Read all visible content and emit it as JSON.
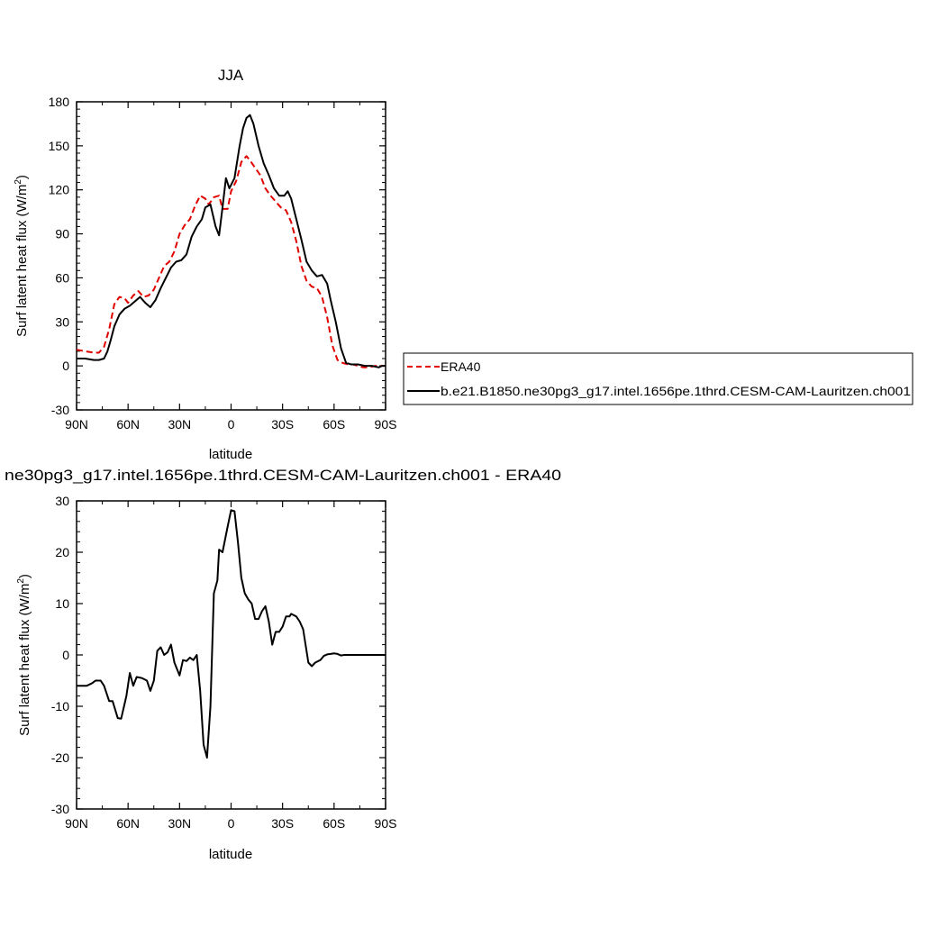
{
  "chart_data": [
    {
      "type": "line",
      "title": "JJA",
      "xlabel": "latitude",
      "ylabel": "Surf latent heat flux (W/m²)",
      "ylabel_main": "Surf latent heat flux (W/m",
      "ylabel_sup": "2",
      "ylabel_end": ")",
      "xlim": [
        90,
        -90
      ],
      "ylim": [
        -30,
        180
      ],
      "xtick_values": [
        90,
        60,
        30,
        0,
        -30,
        -60,
        -90
      ],
      "xtick_labels": [
        "90N",
        "60N",
        "30N",
        "0",
        "30S",
        "60S",
        "90S"
      ],
      "ytick_values": [
        -30,
        0,
        30,
        60,
        90,
        120,
        150,
        180
      ],
      "ytick_labels": [
        "-30",
        "0",
        "30",
        "60",
        "90",
        "120",
        "150",
        "180"
      ],
      "legend": "right",
      "grid": false,
      "series": [
        {
          "name": "ERA40",
          "color": "#e00000",
          "dash": true,
          "x": [
            90,
            85,
            80,
            77,
            74,
            71,
            68,
            65,
            62,
            60,
            57,
            54,
            51,
            48,
            45,
            42,
            39,
            36,
            33,
            30,
            27,
            24,
            21,
            18,
            15,
            13,
            10,
            7,
            5,
            2,
            0,
            -3,
            -6,
            -9,
            -11,
            -14,
            -17,
            -20,
            -23,
            -26,
            -29,
            -32,
            -35,
            -38,
            -41,
            -44,
            -47,
            -50,
            -53,
            -56,
            -59,
            -62,
            -65,
            -68,
            -71,
            -74,
            -77,
            -80,
            -84,
            -88,
            -90
          ],
          "y": [
            11,
            10,
            9,
            9,
            13,
            25,
            42,
            47,
            46,
            43,
            48,
            51,
            47,
            48,
            52,
            60,
            68,
            71,
            78,
            90,
            96,
            100,
            109,
            116,
            114,
            110,
            115,
            116,
            107,
            107,
            119,
            126,
            139,
            143,
            140,
            135,
            130,
            121,
            116,
            112,
            108,
            106,
            98,
            85,
            68,
            58,
            54,
            53,
            47,
            33,
            14,
            4,
            2,
            1,
            1,
            0,
            -1,
            -1,
            0,
            0,
            0
          ]
        },
        {
          "name": "b.e21.B1850.ne30pg3_g17.intel.1656pe.1thrd.CESM-CAM-Lauritzen.ch001",
          "color": "#000000",
          "dash": false,
          "x": [
            90,
            85,
            80,
            77,
            74,
            72,
            70,
            68,
            65,
            62,
            59,
            56,
            53,
            50,
            47,
            44,
            41,
            38,
            35,
            32,
            29,
            26,
            23,
            20,
            17,
            15,
            12,
            9,
            7,
            5,
            3,
            1,
            -2,
            -5,
            -7,
            -9,
            -11,
            -13,
            -16,
            -19,
            -22,
            -25,
            -28,
            -31,
            -33,
            -35,
            -38,
            -41,
            -44,
            -47,
            -50,
            -53,
            -56,
            -58,
            -61,
            -64,
            -67,
            -70,
            -74,
            -78,
            -82,
            -86,
            -88,
            -90
          ],
          "y": [
            5,
            5,
            4,
            4,
            5,
            10,
            18,
            27,
            35,
            39,
            41,
            44,
            47,
            43,
            40,
            45,
            53,
            60,
            67,
            71,
            72,
            76,
            88,
            95,
            100,
            108,
            110,
            95,
            89,
            108,
            128,
            121,
            128,
            150,
            162,
            169,
            171,
            165,
            150,
            138,
            130,
            121,
            116,
            116,
            119,
            114,
            100,
            86,
            71,
            65,
            61,
            62,
            56,
            45,
            30,
            12,
            2,
            1,
            1,
            0,
            0,
            -1,
            0,
            0
          ]
        }
      ]
    },
    {
      "type": "line",
      "title": "ne30pg3_g17.intel.1656pe.1thrd.CESM-CAM-Lauritzen.ch001 - ERA40",
      "xlabel": "latitude",
      "ylabel": "Surf latent heat flux (W/m²)",
      "ylabel_main": "Surf latent heat flux (W/m",
      "ylabel_sup": "2",
      "ylabel_end": ")",
      "xlim": [
        90,
        -90
      ],
      "ylim": [
        -30,
        30
      ],
      "xtick_values": [
        90,
        60,
        30,
        0,
        -30,
        -60,
        -90
      ],
      "xtick_labels": [
        "90N",
        "60N",
        "30N",
        "0",
        "30S",
        "60S",
        "90S"
      ],
      "ytick_values": [
        -30,
        -20,
        -10,
        0,
        10,
        20,
        30
      ],
      "ytick_labels": [
        "-30",
        "-20",
        "-10",
        "0",
        "10",
        "20",
        "30"
      ],
      "legend": "none",
      "grid": false,
      "series": [
        {
          "name": "",
          "color": "#000000",
          "dash": false,
          "x": [
            90,
            86,
            84,
            81,
            79,
            76,
            74,
            71,
            69,
            66,
            64,
            61,
            59,
            57,
            55,
            52,
            49,
            47,
            45,
            43,
            41,
            39,
            37,
            35,
            33,
            30,
            28,
            26,
            24,
            22,
            20,
            18,
            16,
            14,
            12,
            10,
            8,
            7,
            5,
            2,
            0,
            -2,
            -4,
            -6,
            -8,
            -10,
            -12,
            -14,
            -16,
            -18,
            -20,
            -22,
            -24,
            -26,
            -28,
            -30,
            -32,
            -34,
            -35,
            -38,
            -40,
            -42,
            -45,
            -47,
            -49,
            -52,
            -54,
            -56,
            -58,
            -60,
            -62,
            -64,
            -66,
            -68,
            -70,
            -73,
            -75,
            -78,
            -82,
            -85,
            -87,
            -89,
            -90
          ],
          "y": [
            -6,
            -6,
            -6,
            -5.5,
            -5,
            -5,
            -6,
            -9,
            -9,
            -12.3,
            -12.4,
            -8,
            -3.5,
            -6,
            -4.3,
            -4.5,
            -5,
            -7,
            -5,
            0.8,
            1.5,
            0,
            0.5,
            2,
            -1.5,
            -4,
            -1,
            -1.2,
            -0.5,
            -1,
            0,
            -7,
            -17.5,
            -20,
            -10,
            12,
            14.5,
            20.5,
            20,
            25,
            28.2,
            28,
            22,
            15,
            12,
            10.8,
            10,
            7,
            7,
            8.5,
            9.5,
            6.5,
            2,
            4.5,
            4.5,
            5.5,
            7.5,
            7.5,
            8,
            7.5,
            6.5,
            5,
            -1.5,
            -2.2,
            -1.5,
            -1,
            -0.2,
            0.1,
            0.2,
            0.3,
            0.2,
            -0.1,
            0,
            0,
            0,
            0,
            0,
            0,
            0,
            0,
            0,
            0,
            0
          ]
        }
      ]
    }
  ]
}
